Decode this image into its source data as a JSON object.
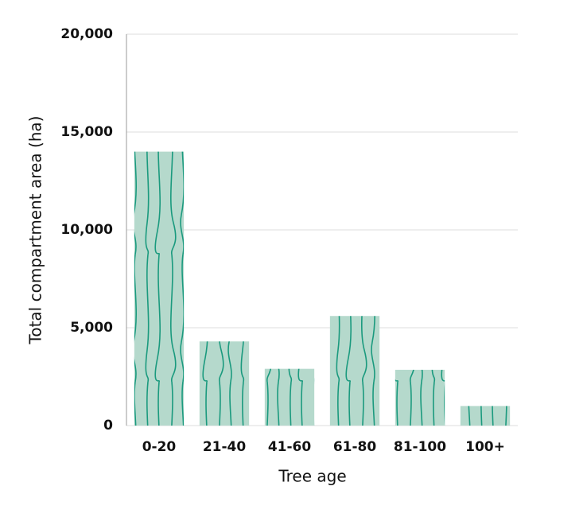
{
  "chart_data": {
    "type": "bar",
    "xlabel": "Tree age",
    "ylabel": "Total compartment area (ha)",
    "categories": [
      "0-20",
      "21-40",
      "41-60",
      "61-80",
      "81-100",
      "100+"
    ],
    "values": [
      14000,
      4300,
      2900,
      5600,
      2850,
      1000
    ],
    "color": "#b5d9cc",
    "pattern_color": "#1a9a7e",
    "ylim": [
      0,
      20000
    ],
    "yticks": [
      0,
      {
        "value": 5000,
        "label": "5,000"
      },
      {
        "value": 10000,
        "label": "10,000"
      },
      {
        "value": 15000,
        "label": "15,000"
      },
      {
        "value": 20000,
        "label": "20,000"
      }
    ],
    "grid": true
  }
}
